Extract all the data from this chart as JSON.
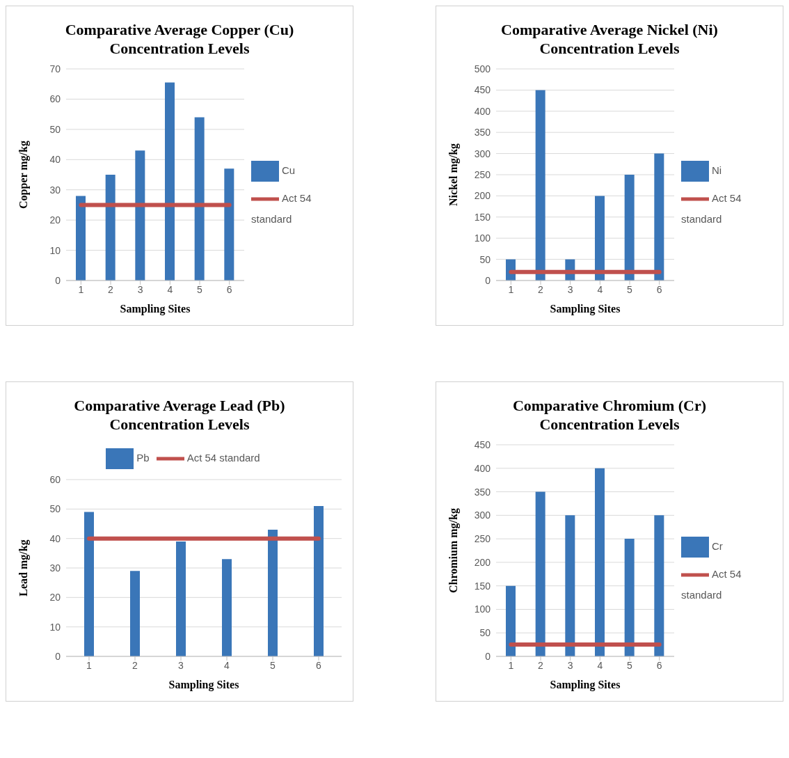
{
  "chart_data": [
    {
      "type": "bar",
      "title": "Comparative Average Copper (Cu) Concentration Levels",
      "xlabel": "Sampling Sites",
      "ylabel": "Copper mg/kg",
      "categories": [
        "1",
        "2",
        "3",
        "4",
        "5",
        "6"
      ],
      "series": [
        {
          "name": "Cu",
          "color": "#3a76b8",
          "values": [
            28,
            35,
            43,
            65.5,
            54,
            37
          ]
        },
        {
          "name": "Act 54 standard",
          "type": "line",
          "color": "#c0504d",
          "values": [
            25,
            25,
            25,
            25,
            25,
            25
          ]
        }
      ],
      "ylim": [
        0,
        70
      ],
      "yticks": [
        0,
        10,
        20,
        30,
        40,
        50,
        60,
        70
      ],
      "grid": "y",
      "legend": "right",
      "marker": "none"
    },
    {
      "type": "bar",
      "title": "Comparative Average Nickel (Ni) Concentration Levels",
      "xlabel": "Sampling Sites",
      "ylabel": "Nickel mg/kg",
      "categories": [
        "1",
        "2",
        "3",
        "4",
        "5",
        "6"
      ],
      "series": [
        {
          "name": "Ni",
          "color": "#3a76b8",
          "values": [
            50,
            450,
            50,
            200,
            250,
            300
          ]
        },
        {
          "name": "Act 54 standard",
          "type": "line",
          "color": "#c0504d",
          "values": [
            20,
            20,
            20,
            20,
            20,
            20
          ]
        }
      ],
      "ylim": [
        0,
        500
      ],
      "yticks": [
        0,
        50,
        100,
        150,
        200,
        250,
        300,
        350,
        400,
        450,
        500
      ],
      "grid": "y",
      "legend": "right",
      "marker": "none"
    },
    {
      "type": "bar",
      "title": "Comparative Average Lead (Pb) Concentration Levels",
      "xlabel": "Sampling Sites",
      "ylabel": "Lead mg/kg",
      "categories": [
        "1",
        "2",
        "3",
        "4",
        "5",
        "6"
      ],
      "series": [
        {
          "name": "Pb",
          "color": "#3a76b8",
          "values": [
            49,
            29,
            39,
            33,
            43,
            51
          ]
        },
        {
          "name": "Act 54 standard",
          "type": "line",
          "color": "#c0504d",
          "values": [
            40,
            40,
            40,
            40,
            40,
            40
          ]
        }
      ],
      "ylim": [
        0,
        60
      ],
      "yticks": [
        0,
        10,
        20,
        30,
        40,
        50,
        60
      ],
      "grid": "y",
      "legend": "top",
      "marker": "none"
    },
    {
      "type": "bar",
      "title": "Comparative Chromium (Cr) Concentration Levels",
      "xlabel": "Sampling Sites",
      "ylabel": "Chromium mg/kg",
      "categories": [
        "1",
        "2",
        "3",
        "4",
        "5",
        "6"
      ],
      "series": [
        {
          "name": "Cr",
          "color": "#3a76b8",
          "values": [
            150,
            350,
            300,
            400,
            250,
            300
          ]
        },
        {
          "name": "Act 54 standard",
          "type": "line",
          "color": "#c0504d",
          "values": [
            25,
            25,
            25,
            25,
            25,
            25
          ]
        }
      ],
      "ylim": [
        0,
        450
      ],
      "yticks": [
        0,
        50,
        100,
        150,
        200,
        250,
        300,
        350,
        400,
        450
      ],
      "grid": "y",
      "legend": "right",
      "marker": "none"
    }
  ]
}
